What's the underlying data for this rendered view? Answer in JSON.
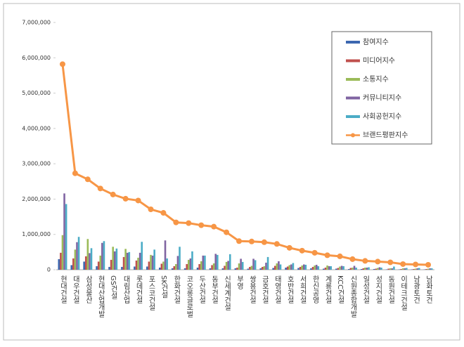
{
  "chart_data": {
    "type": "bar",
    "categories": [
      "현대건설",
      "대우건설",
      "삼성물산",
      "현대산업개발",
      "GS건설",
      "대림산업",
      "롯데건설",
      "포스코건설",
      "SK건설",
      "한화건설",
      "코오롱글로벌",
      "두산건설",
      "동부건설",
      "신세계건설",
      "부영",
      "쌍용건설",
      "금호건설",
      "태영건설",
      "호반건설",
      "서희건설",
      "한신공영",
      "계룡건설",
      "KCC건설",
      "신원종합개발",
      "일성건설",
      "성지건설",
      "동원건설",
      "이테크건설",
      "남광토건",
      "남화토건"
    ],
    "series": [
      {
        "name": "참여지수",
        "color": "#3c67b0",
        "values": [
          300000,
          130000,
          230000,
          100000,
          80000,
          80000,
          90000,
          90000,
          60000,
          40000,
          40000,
          60000,
          40000,
          40000,
          40000,
          30000,
          40000,
          50000,
          60000,
          50000,
          40000,
          30000,
          30000,
          20000,
          20000,
          20000,
          10000,
          10000,
          10000,
          10000
        ]
      },
      {
        "name": "미디어지수",
        "color": "#c0504d",
        "values": [
          480000,
          320000,
          380000,
          230000,
          280000,
          360000,
          260000,
          230000,
          170000,
          100000,
          160000,
          160000,
          130000,
          110000,
          60000,
          80000,
          80000,
          110000,
          90000,
          80000,
          80000,
          60000,
          50000,
          50000,
          40000,
          30000,
          30000,
          20000,
          20000,
          20000
        ]
      },
      {
        "name": "소통지수",
        "color": "#9bbb59",
        "values": [
          980000,
          570000,
          870000,
          400000,
          650000,
          590000,
          340000,
          420000,
          230000,
          160000,
          280000,
          240000,
          180000,
          220000,
          180000,
          110000,
          100000,
          180000,
          130000,
          120000,
          120000,
          120000,
          90000,
          60000,
          60000,
          50000,
          40000,
          40000,
          30000,
          30000
        ]
      },
      {
        "name": "커뮤니티지수",
        "color": "#8064a2",
        "values": [
          2160000,
          780000,
          470000,
          760000,
          520000,
          480000,
          480000,
          400000,
          830000,
          390000,
          320000,
          400000,
          450000,
          250000,
          310000,
          310000,
          200000,
          240000,
          150000,
          150000,
          140000,
          100000,
          110000,
          110000,
          60000,
          70000,
          40000,
          40000,
          40000,
          40000
        ]
      },
      {
        "name": "사회공헌지수",
        "color": "#4bacc6",
        "values": [
          1860000,
          930000,
          610000,
          810000,
          600000,
          500000,
          790000,
          570000,
          320000,
          650000,
          520000,
          400000,
          420000,
          440000,
          220000,
          270000,
          360000,
          150000,
          190000,
          140000,
          100000,
          100000,
          100000,
          60000,
          70000,
          60000,
          90000,
          50000,
          50000,
          40000
        ]
      },
      {
        "name": "브랜드평판지수",
        "color": "#f79646",
        "type": "line",
        "values": [
          5820000,
          2730000,
          2560000,
          2300000,
          2130000,
          2010000,
          1960000,
          1710000,
          1610000,
          1340000,
          1320000,
          1260000,
          1220000,
          1060000,
          810000,
          800000,
          780000,
          730000,
          620000,
          540000,
          480000,
          410000,
          380000,
          300000,
          250000,
          230000,
          210000,
          160000,
          150000,
          140000
        ]
      }
    ],
    "ylim": [
      0,
      7000000
    ],
    "yticks": [
      0,
      {
        "value": 1000000,
        "label": "1,000,000"
      },
      {
        "value": 2000000,
        "label": "2,000,000"
      },
      {
        "value": 3000000,
        "label": "3,000,000"
      },
      {
        "value": 4000000,
        "label": "4,000,000"
      },
      {
        "value": 5000000,
        "label": "5,000,000"
      },
      {
        "value": 6000000,
        "label": "6,000,000"
      },
      {
        "value": 7000000,
        "label": "7,000,000"
      }
    ],
    "grid": false,
    "legend": "upper right"
  }
}
